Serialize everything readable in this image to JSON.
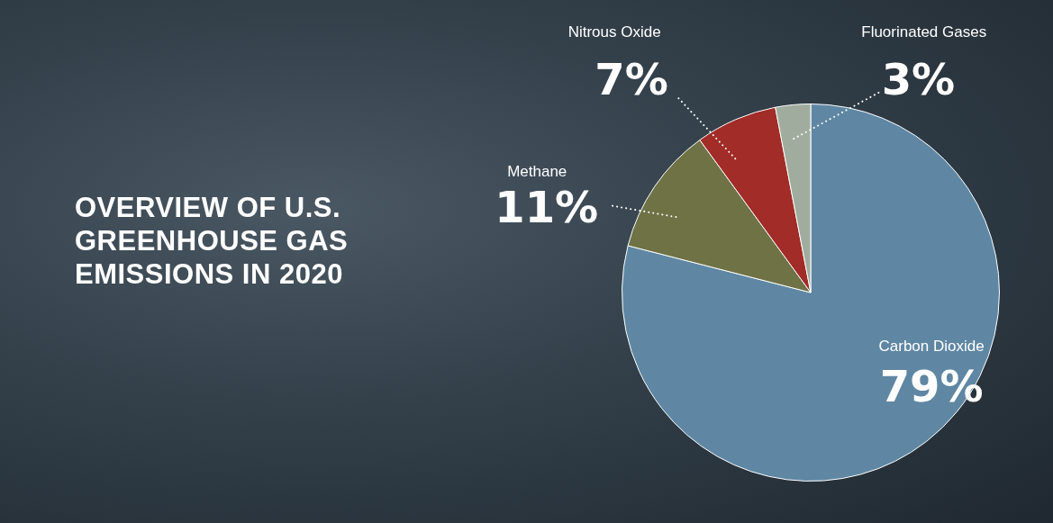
{
  "chart_data": {
    "type": "pie",
    "title": "OVERVIEW OF U.S. GREENHOUSE GAS EMISSIONS IN 2020",
    "categories": [
      "Carbon Dioxide",
      "Methane",
      "Nitrous Oxide",
      "Fluorinated Gases"
    ],
    "values": [
      79,
      11,
      7,
      3
    ],
    "value_labels": [
      "79%",
      "11%",
      "7%",
      "3%"
    ],
    "colors": [
      "#5f87a3",
      "#6e7245",
      "#a22c27",
      "#a0ad9e"
    ],
    "data_labels": true
  }
}
